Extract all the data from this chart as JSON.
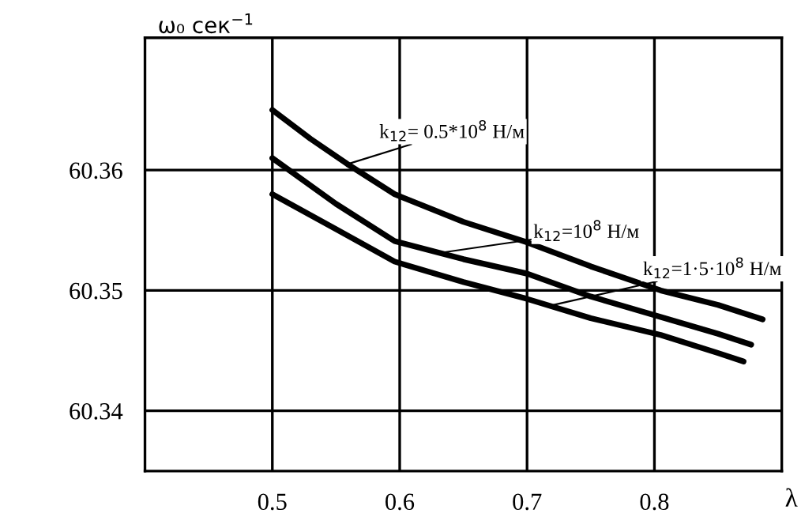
{
  "chart_data": {
    "type": "line",
    "xlabel": "λ",
    "ylabel": "ω₀ сек$^{−1}$",
    "series": [
      {
        "color": "#000000",
        "x": [
          0.5,
          0.53,
          0.559,
          0.596,
          0.65,
          0.7,
          0.75,
          0.805,
          0.85,
          0.885
        ],
        "values": [
          60.365,
          60.3626,
          60.3605,
          60.358,
          60.3557,
          60.354,
          60.352,
          60.35,
          60.3488,
          60.3476
        ]
      },
      {
        "color": "#000000",
        "x": [
          0.5,
          0.55,
          0.596,
          0.65,
          0.7,
          0.75,
          0.805,
          0.85,
          0.876
        ],
        "values": [
          60.361,
          60.3572,
          60.3541,
          60.3526,
          60.3514,
          60.3495,
          60.3478,
          60.3464,
          60.3455
        ]
      },
      {
        "color": "#000000",
        "x": [
          0.5,
          0.55,
          0.596,
          0.65,
          0.7,
          0.75,
          0.805,
          0.85,
          0.87
        ],
        "values": [
          60.358,
          60.3551,
          60.3524,
          60.3507,
          60.3493,
          60.3477,
          60.3463,
          60.3448,
          60.3441
        ]
      }
    ],
    "annotations": [
      {
        "text": "k$_{12}$= 0.5*10$^{8}$ Н/м",
        "x": 0.559,
        "y": 60.3605
      },
      {
        "text": "k$_{12}$=10$^{8}$ Н/м",
        "x": 0.63,
        "y": 60.3531
      },
      {
        "text": "k$_{12}$=1·5·10$^{8}$ Н/м",
        "x": 0.721,
        "y": 60.3488
      }
    ],
    "xlim": [
      0.4,
      0.9
    ],
    "ylim": [
      60.335,
      60.371
    ],
    "xticks": [
      0.5,
      0.6,
      0.7,
      0.8
    ],
    "yticks": [
      60.34,
      60.35,
      60.36
    ],
    "grid": true,
    "marker": "none",
    "line_style": "solid"
  }
}
